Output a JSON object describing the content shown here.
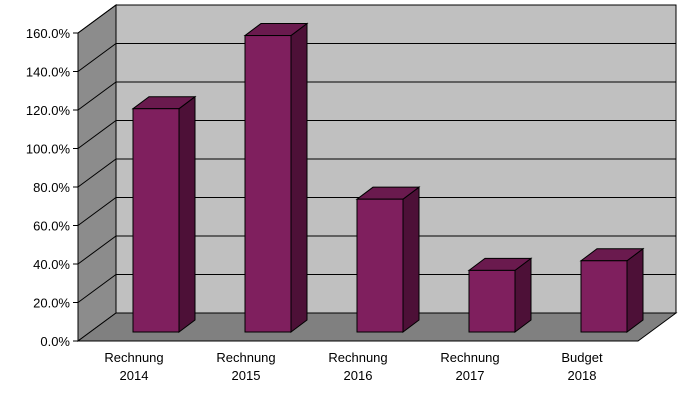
{
  "chart_data": {
    "type": "bar",
    "title": "",
    "xlabel": "",
    "ylabel": "",
    "categories": [
      [
        "Rechnung",
        "2014"
      ],
      [
        "Rechnung",
        "2015"
      ],
      [
        "Rechnung",
        "2016"
      ],
      [
        "Rechnung",
        "2017"
      ],
      [
        "Budget",
        "2018"
      ]
    ],
    "values": [
      116,
      154,
      69,
      32,
      37
    ],
    "value_unit": "%",
    "ylim": [
      0,
      160
    ],
    "y_ticks": [
      "0.0%",
      "20.0%",
      "40.0%",
      "60.0%",
      "80.0%",
      "100.0%",
      "120.0%",
      "140.0%",
      "160.0%"
    ],
    "grid": true,
    "legend": "none",
    "style": "3d-column",
    "colors": {
      "bar_front": "#7f1f5e",
      "bar_side": "#4d1037",
      "bar_top": "#6a1a4e",
      "bar_outline": "#000000",
      "back_wall": "#c0c0c0",
      "side_wall": "#8c8c8c",
      "floor": "#808080",
      "grid": "#000000"
    }
  }
}
